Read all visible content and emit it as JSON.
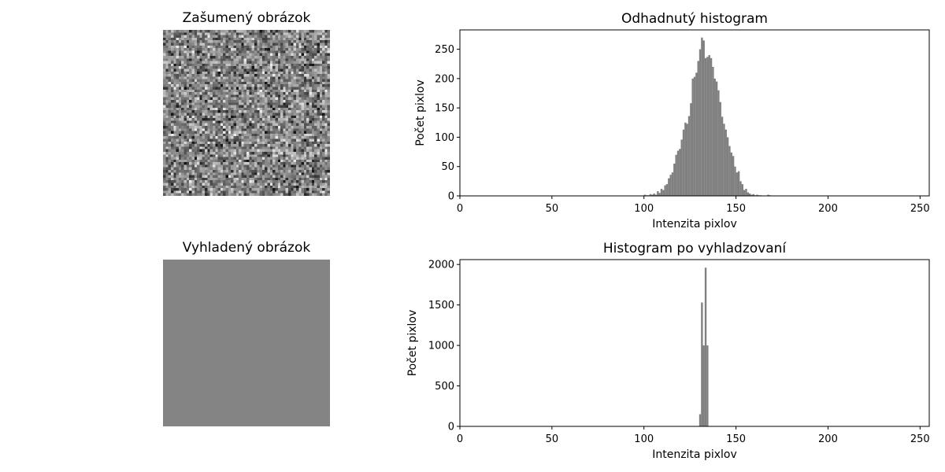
{
  "images": [
    {
      "title": "Zašumený obrázok",
      "kind": "noise",
      "base_gray": 130,
      "noise_sd": 14
    },
    {
      "title": "Vyhladený obrázok",
      "kind": "smooth",
      "base_gray": 132
    }
  ],
  "colors": {
    "bar": "#808080",
    "axis": "#000000"
  },
  "chart_data": [
    {
      "type": "bar",
      "title": "Odhadnutý histogram",
      "xlabel": "Intenzita pixlov",
      "ylabel": "Počet pixlov",
      "xlim": [
        0,
        255
      ],
      "ylim": [
        0,
        283
      ],
      "xticks": [
        0,
        50,
        100,
        150,
        200,
        250
      ],
      "yticks": [
        0,
        50,
        100,
        150,
        200,
        250
      ],
      "x": [
        100,
        101,
        102,
        103,
        104,
        105,
        106,
        107,
        108,
        109,
        110,
        111,
        112,
        113,
        114,
        115,
        116,
        117,
        118,
        119,
        120,
        121,
        122,
        123,
        124,
        125,
        126,
        127,
        128,
        129,
        130,
        131,
        132,
        133,
        134,
        135,
        136,
        137,
        138,
        139,
        140,
        141,
        142,
        143,
        144,
        145,
        146,
        147,
        148,
        149,
        150,
        151,
        152,
        153,
        154,
        155,
        156,
        157,
        158,
        159,
        160,
        161,
        162,
        163,
        164,
        165,
        166,
        167,
        168
      ],
      "values": [
        2,
        1,
        1,
        3,
        2,
        4,
        2,
        8,
        5,
        12,
        10,
        18,
        20,
        30,
        36,
        40,
        55,
        70,
        77,
        80,
        96,
        113,
        125,
        123,
        136,
        158,
        200,
        203,
        210,
        230,
        250,
        270,
        265,
        235,
        237,
        240,
        235,
        220,
        200,
        195,
        180,
        160,
        135,
        123,
        113,
        100,
        85,
        74,
        68,
        50,
        40,
        42,
        25,
        20,
        10,
        12,
        6,
        4,
        2,
        3,
        1,
        2,
        1,
        1,
        0,
        0,
        0,
        2,
        1
      ]
    },
    {
      "type": "bar",
      "title": "Histogram po vyhladzovaní",
      "xlabel": "Intenzita pixlov",
      "ylabel": "Počet pixlov",
      "xlim": [
        0,
        255
      ],
      "ylim": [
        0,
        2060
      ],
      "xticks": [
        0,
        50,
        100,
        150,
        200,
        250
      ],
      "yticks": [
        0,
        500,
        1000,
        1500,
        2000
      ],
      "x": [
        130,
        131,
        132,
        133,
        134
      ],
      "values": [
        150,
        1530,
        1000,
        1960,
        1000
      ]
    }
  ]
}
